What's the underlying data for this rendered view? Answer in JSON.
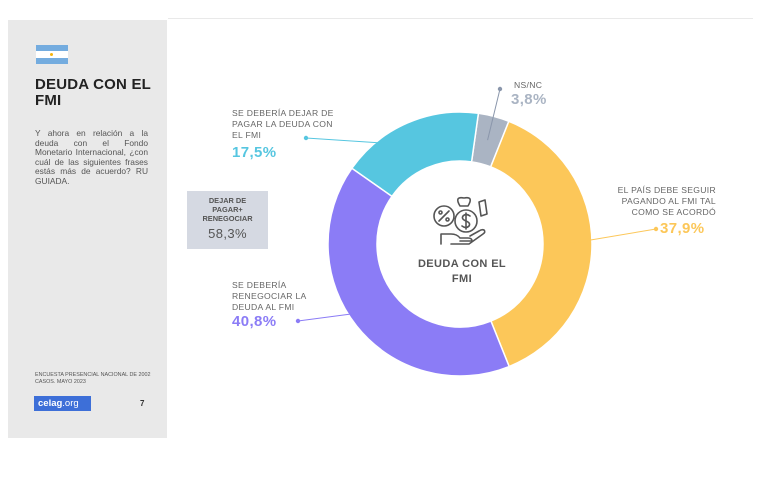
{
  "sidebar": {
    "title": "DEUDA CON EL FMI",
    "question": "Y ahora en relación a la deuda con el Fondo Monetario Internacional, ¿con cuál de las siguientes frases estás más de acuerdo? RU GUIADA.",
    "source": "ENCUESTA PRESENCIAL NACIONAL DE 2002 CASOS. MAYO 2023",
    "logo": "celag",
    "logo_suffix": ".org",
    "page_number": "7"
  },
  "summary_box": {
    "label": "DEJAR DE PAGAR+ RENEGOCIAR",
    "value": "58,3%"
  },
  "colors": {
    "yellow": "#fcc759",
    "purple": "#8b7cf6",
    "cyan": "#56c6e0",
    "gray": "#aab4c3",
    "text": "#666666"
  },
  "chart_data": {
    "type": "pie",
    "donut": true,
    "center_label": "DEUDA CON EL FMI",
    "slices": [
      {
        "label": "NS/NC",
        "value": 3.8,
        "display": "3,8%",
        "color": "#aab4c3"
      },
      {
        "label": "EL PAÍS DEBE SEGUIR PAGANDO AL FMI TAL COMO SE ACORDÓ",
        "value": 37.9,
        "display": "37,9%",
        "color": "#fcc759"
      },
      {
        "label": "SE DEBERÍA RENEGOCIAR LA DEUDA AL FMI",
        "value": 40.8,
        "display": "40,8%",
        "color": "#8b7cf6"
      },
      {
        "label": "SE DEBERÍA DEJAR DE PAGAR LA DEUDA CON EL FMI",
        "value": 17.5,
        "display": "17,5%",
        "color": "#56c6e0"
      }
    ]
  }
}
